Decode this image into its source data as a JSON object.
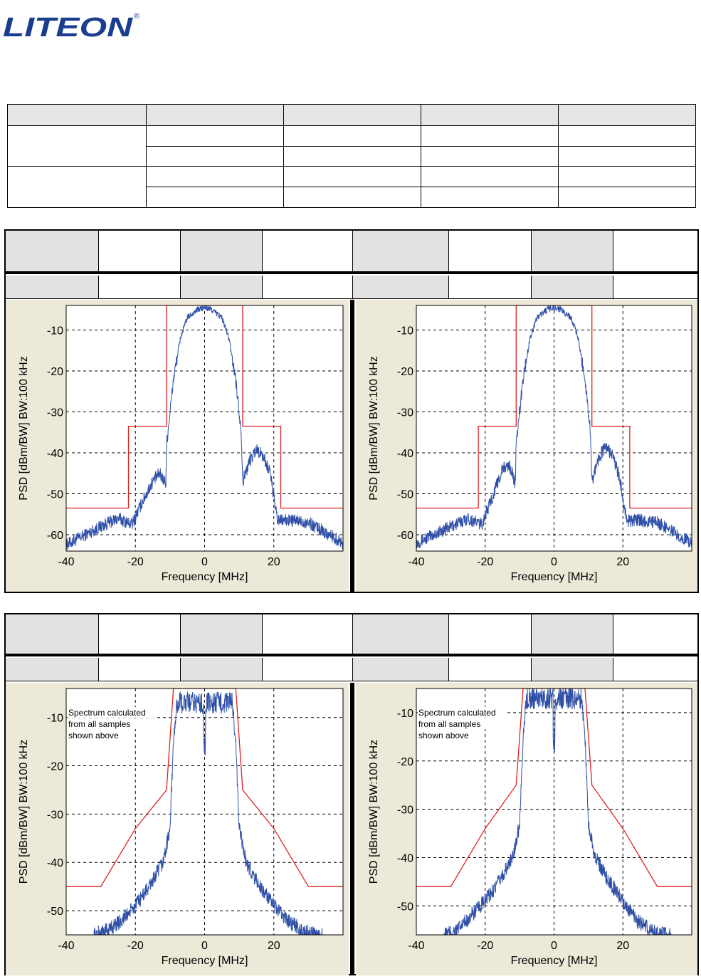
{
  "logo": {
    "text": "LITEON",
    "mark": "®"
  },
  "summary_table": {
    "columns": 5,
    "rows": 5
  },
  "chart_data": [
    {
      "type": "line",
      "xlabel": "Frequency [MHz]",
      "ylabel": "PSD  [dBm/BW]  BW:100 kHz",
      "xlim": [
        -40,
        40
      ],
      "ylim": [
        -64,
        -4
      ],
      "xticks": [
        -40,
        -20,
        0,
        20
      ],
      "yticks": [
        -10,
        -20,
        -30,
        -40,
        -50,
        -60
      ],
      "grid": true,
      "mask": {
        "x": [
          -40,
          -22,
          -22,
          -11,
          -11,
          11,
          11,
          22,
          22,
          40
        ],
        "y": [
          -53.5,
          -53.5,
          -33.5,
          -33.5,
          -4,
          -4,
          -33.5,
          -33.5,
          -53.5,
          -53.5
        ]
      },
      "series": [
        {
          "color": "#3050a8",
          "profile": "ofdm11",
          "x": [
            -40,
            -30,
            -25,
            -21,
            -18,
            -15,
            -13,
            -11.2,
            -11,
            -9,
            -7,
            -5,
            -2,
            0,
            2,
            5,
            7,
            9,
            10.6,
            11,
            13,
            15,
            17,
            19,
            21,
            25,
            30,
            35,
            40
          ],
          "y": [
            -62.5,
            -58,
            -56,
            -57.5,
            -52,
            -47,
            -45,
            -47.5,
            -38,
            -22,
            -12,
            -7,
            -5,
            -4.5,
            -5,
            -7,
            -12,
            -22,
            -35,
            -47,
            -42,
            -39,
            -41,
            -45,
            -56.5,
            -56.5,
            -57,
            -59.5,
            -62
          ]
        }
      ]
    },
    {
      "type": "line",
      "xlabel": "Frequency [MHz]",
      "ylabel": "PSD  [dBm/BW]  BW:100 kHz",
      "xlim": [
        -40,
        40
      ],
      "ylim": [
        -64,
        -4
      ],
      "xticks": [
        -40,
        -20,
        0,
        20
      ],
      "yticks": [
        -10,
        -20,
        -30,
        -40,
        -50,
        -60
      ],
      "grid": true,
      "mask": {
        "x": [
          -40,
          -22,
          -22,
          -11,
          -11,
          11,
          11,
          22,
          22,
          40
        ],
        "y": [
          -53.5,
          -53.5,
          -33.5,
          -33.5,
          -4,
          -4,
          -33.5,
          -33.5,
          -53.5,
          -53.5
        ]
      },
      "series": [
        {
          "color": "#3050a8",
          "profile": "ofdm11",
          "x": [
            -40,
            -30,
            -25,
            -21,
            -18,
            -15,
            -13,
            -11.2,
            -11,
            -9,
            -7,
            -5,
            -2,
            0,
            2,
            5,
            7,
            9,
            10.6,
            11,
            13,
            15,
            17,
            19,
            21,
            25,
            30,
            35,
            40
          ],
          "y": [
            -62,
            -58,
            -56,
            -57.5,
            -51,
            -44,
            -43,
            -47.5,
            -38,
            -22,
            -12,
            -7,
            -5,
            -4.5,
            -5,
            -7,
            -12,
            -22,
            -35,
            -47,
            -41,
            -38.5,
            -40.5,
            -46,
            -56.5,
            -56.5,
            -57,
            -59.5,
            -62
          ]
        }
      ]
    },
    {
      "type": "line",
      "xlabel": "Frequency [MHz]",
      "ylabel": "PSD  [dBm/BW]  BW:100 kHz",
      "xlim": [
        -40,
        40
      ],
      "ylim": [
        -55,
        -4
      ],
      "xticks": [
        -40,
        -20,
        0,
        20
      ],
      "yticks": [
        -10,
        -20,
        -30,
        -40,
        -50
      ],
      "grid": true,
      "annotation": [
        "Spectrum calculated",
        "from all samples",
        "shown above"
      ],
      "mask": {
        "x": [
          -40,
          -30,
          -20,
          -11,
          -9,
          9,
          11,
          20,
          30,
          40
        ],
        "y": [
          -45,
          -45,
          -33,
          -25,
          -4,
          -4,
          -25,
          -33,
          -45,
          -45
        ]
      },
      "series": [
        {
          "color": "#3050a8",
          "profile": "ofdm20",
          "x": [
            -32,
            -28,
            -24,
            -20,
            -16,
            -12,
            -10,
            -9,
            -8,
            8,
            9,
            10,
            12,
            16,
            20,
            24,
            28,
            32,
            34
          ],
          "y": [
            -55,
            -54,
            -52,
            -49,
            -45,
            -40,
            -33,
            -15,
            -7,
            -7,
            -15,
            -33,
            -40,
            -45,
            -49,
            -52,
            -54,
            -55,
            -55
          ]
        }
      ]
    },
    {
      "type": "line",
      "xlabel": "Frequency [MHz]",
      "ylabel": "PSD  [dBm/BW]  BW:100 kHz",
      "xlim": [
        -40,
        40
      ],
      "ylim": [
        -56,
        -5
      ],
      "xticks": [
        -40,
        -20,
        0,
        20
      ],
      "yticks": [
        -10,
        -20,
        -30,
        -40,
        -50
      ],
      "grid": true,
      "annotation": [
        "Spectrum calculated",
        "from all samples",
        "shown above"
      ],
      "mask": {
        "x": [
          -40,
          -30,
          -20,
          -11,
          -9,
          9,
          11,
          20,
          30,
          40
        ],
        "y": [
          -46,
          -46,
          -34,
          -25,
          -5,
          -5,
          -25,
          -34,
          -46,
          -46
        ]
      },
      "series": [
        {
          "color": "#3050a8",
          "profile": "ofdm20",
          "x": [
            -32,
            -28,
            -24,
            -20,
            -16,
            -12,
            -10,
            -9,
            -8,
            8,
            9,
            10,
            12,
            16,
            20,
            24,
            28,
            32,
            34
          ],
          "y": [
            -56,
            -55,
            -52,
            -49,
            -45,
            -40,
            -33,
            -15,
            -7,
            -7,
            -15,
            -33,
            -40,
            -45,
            -49,
            -53,
            -55,
            -56,
            -56
          ]
        }
      ]
    }
  ]
}
